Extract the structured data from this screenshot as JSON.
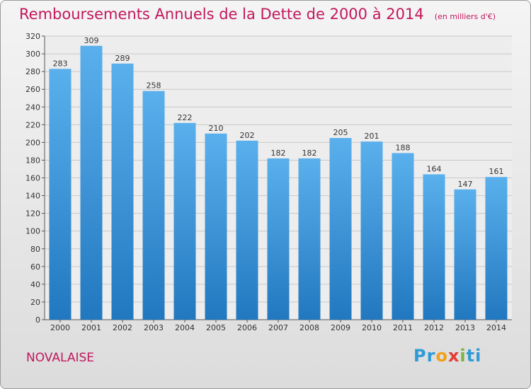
{
  "title": "Remboursements Annuels de la Dette de 2000 à 2014",
  "unit_note": "(en milliers d'€)",
  "commune": "NOVALAISE",
  "logo": {
    "text": "Proxiti",
    "letters": [
      "P",
      "r",
      "o",
      "x",
      "i",
      "t",
      "i"
    ],
    "colors": [
      "#2e9bd6",
      "#2e9bd6",
      "#f0a11a",
      "#e53935",
      "#7cb342",
      "#2e9bd6",
      "#2e9bd6"
    ]
  },
  "colors": {
    "bar_top": "#5ab0ec",
    "bar_bottom": "#2278bf",
    "title": "#c2185b",
    "grid": "#c8c8c8"
  },
  "chart_data": {
    "type": "bar",
    "title": "Remboursements Annuels de la Dette de 2000 à 2014",
    "ylabel": "",
    "xlabel": "",
    "categories": [
      "2000",
      "2001",
      "2002",
      "2003",
      "2004",
      "2005",
      "2006",
      "2007",
      "2008",
      "2009",
      "2010",
      "2011",
      "2012",
      "2013",
      "2014"
    ],
    "values": [
      283,
      309,
      289,
      258,
      222,
      210,
      202,
      182,
      182,
      205,
      201,
      188,
      164,
      147,
      161
    ],
    "ylim": [
      0,
      320
    ],
    "yticks": [
      0,
      20,
      40,
      60,
      80,
      100,
      120,
      140,
      160,
      180,
      200,
      220,
      240,
      260,
      280,
      300,
      320
    ],
    "grid": true,
    "data_labels": true
  }
}
